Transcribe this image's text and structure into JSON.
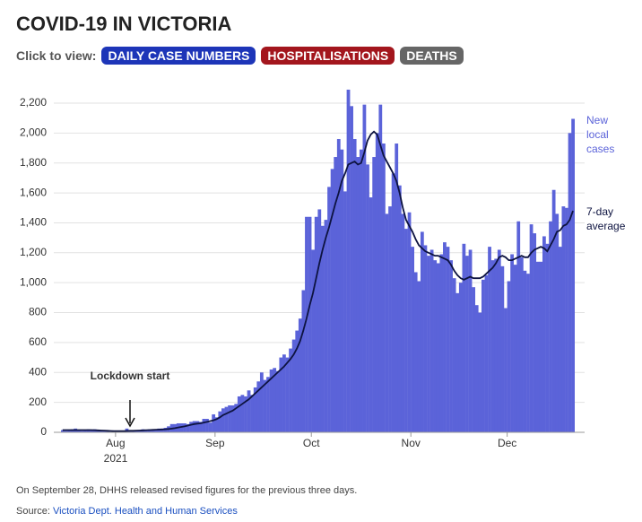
{
  "header": {
    "title": "COVID-19 IN VICTORIA",
    "click_label": "Click to view:",
    "buttons": [
      {
        "label": "DAILY CASE NUMBERS",
        "color": "#1d35b8"
      },
      {
        "label": "HOSPITALISATIONS",
        "color": "#a3161d"
      },
      {
        "label": "DEATHS",
        "color": "#666666"
      }
    ]
  },
  "chart_data": {
    "type": "bar",
    "categories": [
      null,
      null,
      null,
      null,
      null,
      null,
      null,
      null,
      null,
      null,
      null,
      null,
      null,
      null,
      null,
      null,
      null,
      "Aug",
      null,
      null,
      null,
      null,
      null,
      null,
      null,
      null,
      null,
      null,
      null,
      null,
      null,
      null,
      null,
      null,
      null,
      null,
      null,
      null,
      null,
      null,
      null,
      null,
      null,
      null,
      null,
      null,
      null,
      null,
      "Sep",
      null,
      null,
      null,
      null,
      null,
      null,
      null,
      null,
      null,
      null,
      null,
      null,
      null,
      null,
      null,
      null,
      null,
      null,
      null,
      null,
      null,
      null,
      null,
      null,
      null,
      null,
      null,
      null,
      null,
      "Oct",
      null,
      null,
      null,
      null,
      null,
      null,
      null,
      null,
      null,
      null,
      null,
      null,
      null,
      null,
      null,
      null,
      null,
      null,
      null,
      null,
      null,
      null,
      null,
      null,
      null,
      null,
      null,
      null,
      null,
      null,
      "Nov",
      null,
      null,
      null,
      null,
      null,
      null,
      null,
      null,
      null,
      null,
      null,
      null,
      null,
      null,
      null,
      null,
      null,
      null,
      null,
      null,
      null,
      null,
      null,
      null,
      null,
      null,
      null,
      null,
      null,
      "Dec",
      null,
      null,
      null,
      null,
      null,
      null,
      null,
      null,
      null,
      null,
      null,
      null,
      null,
      null,
      null,
      null,
      null,
      null,
      null,
      null
    ],
    "year_label": "2021",
    "series": [
      {
        "name": "New local cases",
        "color": "#5b63d9",
        "values": [
          15,
          10,
          15,
          20,
          25,
          15,
          10,
          15,
          20,
          15,
          20,
          15,
          10,
          10,
          10,
          5,
          5,
          5,
          5,
          5,
          25,
          10,
          10,
          15,
          15,
          20,
          15,
          20,
          20,
          20,
          25,
          25,
          30,
          40,
          55,
          55,
          60,
          60,
          60,
          55,
          70,
          75,
          75,
          70,
          90,
          90,
          65,
          120,
          100,
          140,
          160,
          170,
          180,
          180,
          190,
          240,
          250,
          240,
          280,
          250,
          300,
          340,
          400,
          350,
          370,
          420,
          430,
          410,
          500,
          520,
          500,
          560,
          620,
          680,
          760,
          950,
          1440,
          1440,
          1220,
          1440,
          1490,
          1380,
          1420,
          1640,
          1760,
          1840,
          1960,
          1890,
          1610,
          2290,
          2180,
          1960,
          1840,
          1890,
          2190,
          1790,
          1570,
          1840,
          2000,
          2190,
          1930,
          1460,
          1510,
          1730,
          1930,
          1650,
          1460,
          1360,
          1470,
          1240,
          1070,
          1010,
          1340,
          1250,
          1180,
          1220,
          1150,
          1130,
          1190,
          1270,
          1240,
          1150,
          1030,
          930,
          1000,
          1260,
          1180,
          1220,
          970,
          850,
          800,
          1020,
          1050,
          1240,
          1150,
          1160,
          1220,
          1110,
          830,
          1010,
          1190,
          1120,
          1410,
          1170,
          1080,
          1060,
          1390,
          1330,
          1140,
          1140,
          1310,
          1260,
          1410,
          1620,
          1460,
          1240,
          1510,
          1500,
          2000,
          2095
        ]
      },
      {
        "name": "7-day average",
        "color": "#0d1340",
        "values": [
          15,
          15,
          15,
          15,
          15,
          15,
          15,
          15,
          15,
          15,
          14,
          13,
          12,
          11,
          10,
          9,
          8,
          8,
          8,
          8,
          9,
          10,
          10,
          11,
          12,
          13,
          14,
          15,
          16,
          17,
          18,
          19,
          20,
          22,
          25,
          28,
          32,
          36,
          40,
          45,
          50,
          55,
          58,
          60,
          65,
          70,
          75,
          80,
          88,
          100,
          115,
          125,
          135,
          145,
          160,
          175,
          190,
          205,
          220,
          240,
          260,
          280,
          300,
          320,
          340,
          360,
          380,
          400,
          420,
          440,
          465,
          490,
          520,
          560,
          610,
          680,
          760,
          850,
          930,
          1030,
          1130,
          1220,
          1300,
          1370,
          1450,
          1530,
          1600,
          1680,
          1730,
          1790,
          1800,
          1810,
          1790,
          1800,
          1870,
          1950,
          1990,
          2010,
          1990,
          1920,
          1850,
          1810,
          1770,
          1730,
          1680,
          1600,
          1500,
          1420,
          1380,
          1340,
          1290,
          1250,
          1230,
          1210,
          1200,
          1190,
          1180,
          1180,
          1170,
          1160,
          1150,
          1120,
          1080,
          1050,
          1030,
          1020,
          1030,
          1040,
          1030,
          1030,
          1030,
          1040,
          1060,
          1080,
          1100,
          1130,
          1170,
          1180,
          1170,
          1150,
          1150,
          1160,
          1170,
          1180,
          1170,
          1170,
          1200,
          1220,
          1230,
          1240,
          1230,
          1210,
          1250,
          1290,
          1340,
          1350,
          1380,
          1390,
          1420,
          1480
        ]
      }
    ],
    "ylim": [
      0,
      2300
    ],
    "yticks": [
      0,
      200,
      400,
      600,
      800,
      {
        "value": 1000,
        "label": "1,000"
      },
      {
        "value": 1200,
        "label": "1,200"
      },
      {
        "value": 1400,
        "label": "1,400"
      },
      {
        "value": 1600,
        "label": "1,600"
      },
      {
        "value": 1800,
        "label": "1,800"
      },
      {
        "value": 2000,
        "label": "2,000"
      },
      {
        "value": 2200,
        "label": "2,200"
      }
    ],
    "grid": true,
    "annotation": "Lockdown start"
  },
  "footer": {
    "note": "On September 28, DHHS released revised figures for the previous three days.",
    "source_label": "Source:",
    "source_link": "Victoria Dept. Health and Human Services"
  }
}
